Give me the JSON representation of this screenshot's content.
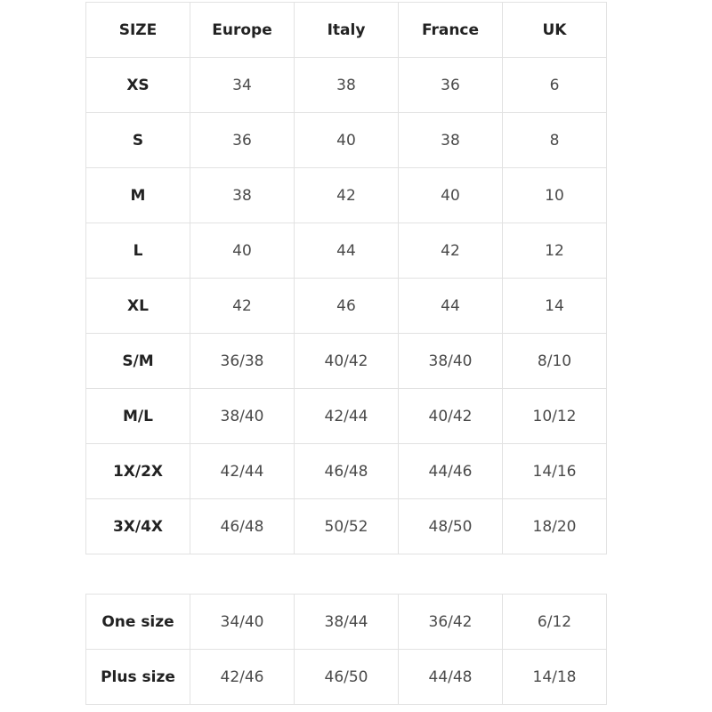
{
  "table": {
    "headers": [
      "SIZE",
      "Europe",
      "Italy",
      "France",
      "UK"
    ],
    "rows": [
      [
        "XS",
        "34",
        "38",
        "36",
        "6"
      ],
      [
        "S",
        "36",
        "40",
        "38",
        "8"
      ],
      [
        "M",
        "38",
        "42",
        "40",
        "10"
      ],
      [
        "L",
        "40",
        "44",
        "42",
        "12"
      ],
      [
        "XL",
        "42",
        "46",
        "44",
        "14"
      ],
      [
        "S/M",
        "36/38",
        "40/42",
        "38/40",
        "8/10"
      ],
      [
        "M/L",
        "38/40",
        "42/44",
        "40/42",
        "10/12"
      ],
      [
        "1X/2X",
        "42/44",
        "46/48",
        "44/46",
        "14/16"
      ],
      [
        "3X/4X",
        "46/48",
        "50/52",
        "48/50",
        "18/20"
      ]
    ]
  },
  "table2": {
    "rows": [
      [
        "One size",
        "34/40",
        "38/44",
        "36/42",
        "6/12"
      ],
      [
        "Plus size",
        "42/46",
        "46/50",
        "44/48",
        "14/18"
      ]
    ]
  }
}
